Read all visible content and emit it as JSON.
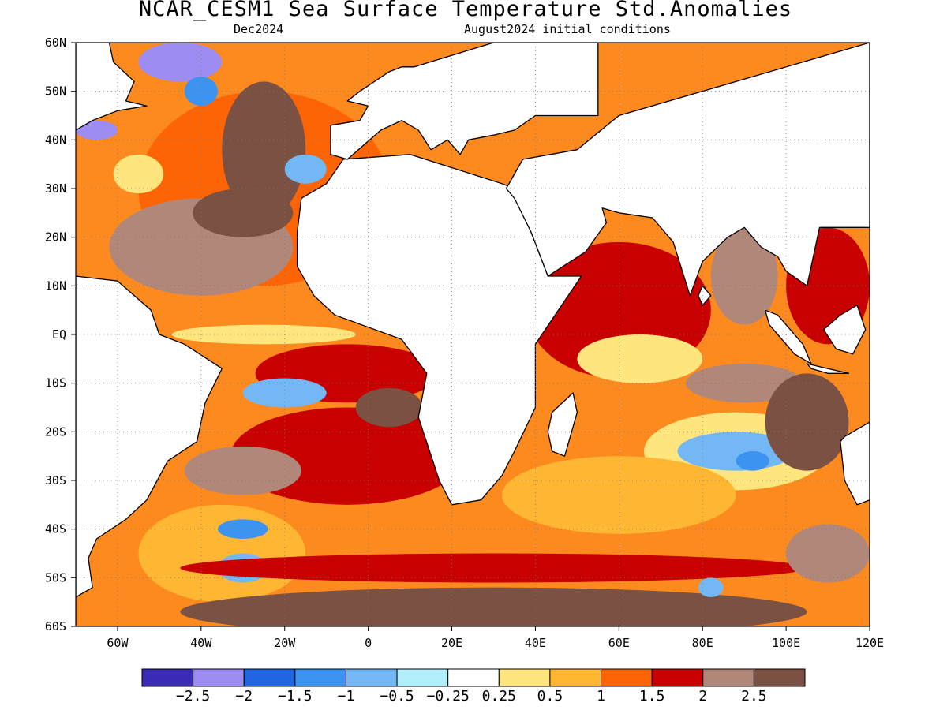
{
  "title": "NCAR_CESM1 Sea Surface Temperature Std.Anomalies",
  "forecast_month": "Dec2024",
  "init_conditions": "August2024 initial conditions",
  "map": {
    "projection": "cylindrical",
    "lon_range": [
      -70,
      120
    ],
    "lat_range": [
      -60,
      60
    ],
    "grid": true,
    "lat_ticks": [
      {
        "lat": 60,
        "label": "60N"
      },
      {
        "lat": 50,
        "label": "50N"
      },
      {
        "lat": 40,
        "label": "40N"
      },
      {
        "lat": 30,
        "label": "30N"
      },
      {
        "lat": 20,
        "label": "20N"
      },
      {
        "lat": 10,
        "label": "10N"
      },
      {
        "lat": 0,
        "label": "EQ"
      },
      {
        "lat": -10,
        "label": "10S"
      },
      {
        "lat": -20,
        "label": "20S"
      },
      {
        "lat": -30,
        "label": "30S"
      },
      {
        "lat": -40,
        "label": "40S"
      },
      {
        "lat": -50,
        "label": "50S"
      },
      {
        "lat": -60,
        "label": "60S"
      }
    ],
    "lon_ticks": [
      {
        "lon": -60,
        "label": "60W"
      },
      {
        "lon": -40,
        "label": "40W"
      },
      {
        "lon": -20,
        "label": "20W"
      },
      {
        "lon": 0,
        "label": "0"
      },
      {
        "lon": 20,
        "label": "20E"
      },
      {
        "lon": 40,
        "label": "40E"
      },
      {
        "lon": 60,
        "label": "60E"
      },
      {
        "lon": 80,
        "label": "80E"
      },
      {
        "lon": 100,
        "label": "100E"
      },
      {
        "lon": 120,
        "label": "120E"
      }
    ],
    "anomaly_regions": [
      {
        "lon": -25,
        "lat": 30,
        "rx": 30,
        "ry": 20,
        "level": 1.0
      },
      {
        "lon": -40,
        "lat": 18,
        "rx": 22,
        "ry": 10,
        "level": 2.0
      },
      {
        "lon": -25,
        "lat": 38,
        "rx": 10,
        "ry": 14,
        "level": 2.5
      },
      {
        "lon": -30,
        "lat": 25,
        "rx": 12,
        "ry": 5,
        "level": 2.5
      },
      {
        "lon": -45,
        "lat": 56,
        "rx": 10,
        "ry": 4,
        "level": -2.5
      },
      {
        "lon": -65,
        "lat": 42,
        "rx": 5,
        "ry": 2,
        "level": -2.5
      },
      {
        "lon": -40,
        "lat": 50,
        "rx": 4,
        "ry": 3,
        "level": -1.5
      },
      {
        "lon": -15,
        "lat": 34,
        "rx": 5,
        "ry": 3,
        "level": -1.0
      },
      {
        "lon": -55,
        "lat": 33,
        "rx": 6,
        "ry": 4,
        "level": 0.25
      },
      {
        "lon": -5,
        "lat": -8,
        "rx": 22,
        "ry": 6,
        "level": 1.5
      },
      {
        "lon": -20,
        "lat": -12,
        "rx": 10,
        "ry": 3,
        "level": -1.0
      },
      {
        "lon": -25,
        "lat": 0,
        "rx": 22,
        "ry": 2,
        "level": 0.25
      },
      {
        "lon": -5,
        "lat": -25,
        "rx": 28,
        "ry": 10,
        "level": 1.5
      },
      {
        "lon": -30,
        "lat": -28,
        "rx": 14,
        "ry": 5,
        "level": 2.0
      },
      {
        "lon": 5,
        "lat": -15,
        "rx": 8,
        "ry": 4,
        "level": 2.5
      },
      {
        "lon": -35,
        "lat": -45,
        "rx": 20,
        "ry": 10,
        "level": 0.5
      },
      {
        "lon": -30,
        "lat": -40,
        "rx": 6,
        "ry": 2,
        "level": -1.5
      },
      {
        "lon": -30,
        "lat": -48,
        "rx": 6,
        "ry": 3,
        "level": -1.0
      },
      {
        "lon": 30,
        "lat": -57,
        "rx": 75,
        "ry": 5,
        "level": 2.5
      },
      {
        "lon": 30,
        "lat": -48,
        "rx": 75,
        "ry": 3,
        "level": 1.5
      },
      {
        "lon": 60,
        "lat": 5,
        "rx": 22,
        "ry": 14,
        "level": 1.5
      },
      {
        "lon": 65,
        "lat": -5,
        "rx": 15,
        "ry": 5,
        "level": 0.25
      },
      {
        "lon": 90,
        "lat": -10,
        "rx": 14,
        "ry": 4,
        "level": 2.0
      },
      {
        "lon": 90,
        "lat": 12,
        "rx": 8,
        "ry": 10,
        "level": 2.0
      },
      {
        "lon": 88,
        "lat": -24,
        "rx": 22,
        "ry": 8,
        "level": 0.25
      },
      {
        "lon": 88,
        "lat": -24,
        "rx": 14,
        "ry": 4,
        "level": -1.0
      },
      {
        "lon": 92,
        "lat": -26,
        "rx": 4,
        "ry": 2,
        "level": -1.5
      },
      {
        "lon": 105,
        "lat": -18,
        "rx": 10,
        "ry": 10,
        "level": 2.5
      },
      {
        "lon": 60,
        "lat": -33,
        "rx": 28,
        "ry": 8,
        "level": 0.5
      },
      {
        "lon": 110,
        "lat": -45,
        "rx": 10,
        "ry": 6,
        "level": 2.0
      },
      {
        "lon": 82,
        "lat": -52,
        "rx": 3,
        "ry": 2,
        "level": -1.0
      },
      {
        "lon": 110,
        "lat": 10,
        "rx": 10,
        "ry": 12,
        "level": 1.5
      }
    ],
    "land_masses": [
      {
        "name": "africa",
        "points": [
          [
            -17,
            21
          ],
          [
            -16,
            28
          ],
          [
            -10,
            31
          ],
          [
            -6,
            36
          ],
          [
            10,
            37
          ],
          [
            32,
            31
          ],
          [
            35,
            30
          ],
          [
            43,
            12
          ],
          [
            51,
            12
          ],
          [
            40,
            -2
          ],
          [
            40,
            -15
          ],
          [
            35,
            -24
          ],
          [
            32,
            -29
          ],
          [
            27,
            -34
          ],
          [
            20,
            -35
          ],
          [
            17,
            -30
          ],
          [
            12,
            -17
          ],
          [
            14,
            -8
          ],
          [
            8,
            -1
          ],
          [
            -8,
            4
          ],
          [
            -13,
            8
          ],
          [
            -17,
            14
          ]
        ]
      },
      {
        "name": "europe",
        "points": [
          [
            -9,
            37
          ],
          [
            -9,
            43
          ],
          [
            -2,
            44
          ],
          [
            0,
            47
          ],
          [
            -5,
            48
          ],
          [
            -2,
            50
          ],
          [
            5,
            54
          ],
          [
            8,
            55
          ],
          [
            11,
            55
          ],
          [
            30,
            60
          ],
          [
            55,
            60
          ],
          [
            55,
            45
          ],
          [
            40,
            45
          ],
          [
            35,
            42
          ],
          [
            30,
            41
          ],
          [
            24,
            40
          ],
          [
            22,
            37
          ],
          [
            19,
            40
          ],
          [
            15,
            38
          ],
          [
            12,
            42
          ],
          [
            8,
            44
          ],
          [
            3,
            42
          ],
          [
            -5,
            36
          ]
        ]
      },
      {
        "name": "arabia-asia",
        "points": [
          [
            33,
            30
          ],
          [
            37,
            36
          ],
          [
            50,
            38
          ],
          [
            60,
            45
          ],
          [
            120,
            60
          ],
          [
            120,
            22
          ],
          [
            108,
            22
          ],
          [
            105,
            10
          ],
          [
            100,
            13
          ],
          [
            98,
            16
          ],
          [
            94,
            18
          ],
          [
            90,
            22
          ],
          [
            86,
            20
          ],
          [
            80,
            15
          ],
          [
            77,
            8
          ],
          [
            73,
            19
          ],
          [
            68,
            24
          ],
          [
            60,
            25
          ],
          [
            56,
            26
          ],
          [
            57,
            23
          ],
          [
            52,
            17
          ],
          [
            43,
            12
          ],
          [
            39,
            21
          ],
          [
            35,
            28
          ]
        ]
      },
      {
        "name": "south-america",
        "points": [
          [
            -70,
            12
          ],
          [
            -60,
            11
          ],
          [
            -52,
            5
          ],
          [
            -50,
            0
          ],
          [
            -44,
            -2
          ],
          [
            -35,
            -7
          ],
          [
            -39,
            -14
          ],
          [
            -41,
            -22
          ],
          [
            -48,
            -26
          ],
          [
            -53,
            -34
          ],
          [
            -58,
            -38
          ],
          [
            -65,
            -42
          ],
          [
            -67,
            -46
          ],
          [
            -66,
            -52
          ],
          [
            -70,
            -54
          ],
          [
            -70,
            -60
          ],
          [
            -70,
            12
          ]
        ]
      },
      {
        "name": "north-america",
        "points": [
          [
            -70,
            60
          ],
          [
            -62,
            60
          ],
          [
            -61,
            56
          ],
          [
            -56,
            52
          ],
          [
            -58,
            48
          ],
          [
            -53,
            47
          ],
          [
            -60,
            46
          ],
          [
            -66,
            44
          ],
          [
            -70,
            42
          ],
          [
            -70,
            60
          ]
        ]
      },
      {
        "name": "madagascar",
        "points": [
          [
            44,
            -16
          ],
          [
            49,
            -12
          ],
          [
            50,
            -16
          ],
          [
            47,
            -25
          ],
          [
            44,
            -24
          ],
          [
            43,
            -20
          ]
        ]
      },
      {
        "name": "australia",
        "points": [
          [
            113,
            -22
          ],
          [
            114,
            -30
          ],
          [
            117,
            -35
          ],
          [
            120,
            -34
          ],
          [
            120,
            -18
          ],
          [
            114,
            -21
          ]
        ]
      },
      {
        "name": "sri-lanka",
        "points": [
          [
            80,
            6
          ],
          [
            81,
            7
          ],
          [
            82,
            8
          ],
          [
            80,
            10
          ],
          [
            79,
            8
          ]
        ]
      },
      {
        "name": "sumatra",
        "points": [
          [
            95,
            5
          ],
          [
            98,
            4
          ],
          [
            104,
            -2
          ],
          [
            106,
            -6
          ],
          [
            102,
            -4
          ],
          [
            96,
            2
          ]
        ]
      },
      {
        "name": "borneo",
        "points": [
          [
            109,
            1
          ],
          [
            112,
            -3
          ],
          [
            116,
            -4
          ],
          [
            119,
            1
          ],
          [
            117,
            6
          ],
          [
            113,
            4
          ]
        ]
      },
      {
        "name": "java",
        "points": [
          [
            105,
            -6
          ],
          [
            110,
            -7
          ],
          [
            115,
            -8
          ],
          [
            110,
            -8
          ],
          [
            106,
            -7
          ]
        ]
      },
      {
        "name": "greenland-tip",
        "points": [
          [
            -48,
            60
          ],
          [
            -44,
            60
          ],
          [
            -43,
            60
          ],
          [
            -48,
            60
          ]
        ]
      }
    ]
  },
  "colorbar": {
    "colors": [
      "#3c2bb4",
      "#9d8cf2",
      "#2166e0",
      "#3d93f0",
      "#74b7f5",
      "#b1eefa",
      "#ffffff",
      "#ffe57d",
      "#ffb633",
      "#fd6406",
      "#c80000",
      "#b1877a",
      "#7b5143"
    ],
    "labels": [
      "−2.5",
      "−2",
      "−1.5",
      "−1",
      "−0.5",
      "−0.25",
      "0.25",
      "0.5",
      "1",
      "1.5",
      "2",
      "2.5"
    ]
  }
}
